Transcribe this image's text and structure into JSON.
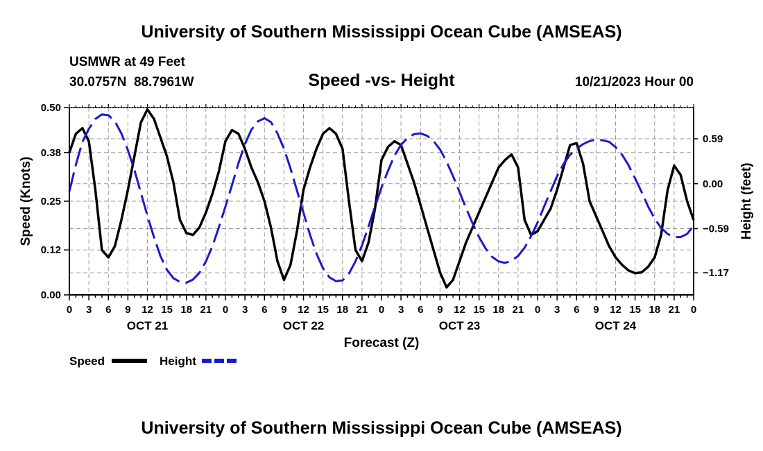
{
  "title": "University of Southern Mississippi Ocean Cube (AMSEAS)",
  "footer_title": "University of Southern Mississippi Ocean Cube (AMSEAS)",
  "station": {
    "name": "USMWR at 49 Feet",
    "coords": "30.0757N  88.7961W"
  },
  "subtitle": "Speed -vs- Height",
  "timestamp": "10/21/2023 Hour 00",
  "colors": {
    "speed": "#000000",
    "height": "#1a1acc",
    "grid": "#999999",
    "axis": "#000000"
  },
  "chart_data": {
    "type": "line",
    "title": "Speed -vs- Height",
    "xlabel": "Forecast (Z)",
    "ylabel": "Speed (Knots)",
    "y2label": "Height (feet)",
    "x_range": [
      0,
      96
    ],
    "ylim": [
      0,
      0.5
    ],
    "y2lim": [
      -1.46,
      1.0
    ],
    "x_ticks": [
      0,
      3,
      6,
      9,
      12,
      15,
      18,
      21,
      24,
      27,
      30,
      33,
      36,
      39,
      42,
      45,
      48,
      51,
      54,
      57,
      60,
      63,
      66,
      69,
      72,
      75,
      78,
      81,
      84,
      87,
      90,
      93,
      96
    ],
    "x_tick_labels": [
      "0",
      "3",
      "6",
      "9",
      "12",
      "15",
      "18",
      "21",
      "0",
      "3",
      "6",
      "9",
      "12",
      "15",
      "18",
      "21",
      "0",
      "3",
      "6",
      "9",
      "12",
      "15",
      "18",
      "21",
      "0",
      "3",
      "6",
      "9",
      "12",
      "15",
      "18",
      "21",
      "0"
    ],
    "day_labels": [
      {
        "x": 12,
        "label": "OCT 21"
      },
      {
        "x": 36,
        "label": "OCT 22"
      },
      {
        "x": 60,
        "label": "OCT 23"
      },
      {
        "x": 84,
        "label": "OCT 24"
      }
    ],
    "y_ticks": [
      0.0,
      0.12,
      0.25,
      0.38,
      0.5
    ],
    "y_tick_labels": [
      "0.00",
      "0.12",
      "0.25",
      "0.38",
      "0.50"
    ],
    "y2_ticks": [
      0.59,
      0.0,
      -0.59,
      -1.17
    ],
    "y2_tick_labels": [
      "0.59",
      "0.00",
      "-0.59",
      "-1.17"
    ],
    "legend": [
      {
        "name": "Speed",
        "style": "solid"
      },
      {
        "name": "Height",
        "style": "dashed"
      }
    ],
    "series": [
      {
        "name": "Speed",
        "axis": "left",
        "x": [
          0,
          1,
          2,
          3,
          4,
          5,
          6,
          7,
          8,
          9,
          10,
          11,
          12,
          13,
          14,
          15,
          16,
          17,
          18,
          19,
          20,
          21,
          22,
          23,
          24,
          25,
          26,
          27,
          28,
          29,
          30,
          31,
          32,
          33,
          34,
          35,
          36,
          37,
          38,
          39,
          40,
          41,
          42,
          43,
          44,
          45,
          46,
          47,
          48,
          49,
          50,
          51,
          52,
          53,
          54,
          55,
          56,
          57,
          58,
          59,
          60,
          61,
          62,
          63,
          64,
          65,
          66,
          67,
          68,
          69,
          70,
          71,
          72,
          73,
          74,
          75,
          76,
          77,
          78,
          79,
          80,
          81,
          82,
          83,
          84,
          85,
          86,
          87,
          88,
          89,
          90,
          91,
          92,
          93,
          94,
          95,
          96
        ],
        "values": [
          0.38,
          0.43,
          0.445,
          0.41,
          0.28,
          0.12,
          0.1,
          0.13,
          0.2,
          0.28,
          0.37,
          0.46,
          0.495,
          0.47,
          0.42,
          0.37,
          0.3,
          0.2,
          0.165,
          0.16,
          0.18,
          0.22,
          0.27,
          0.33,
          0.41,
          0.44,
          0.43,
          0.39,
          0.34,
          0.3,
          0.25,
          0.18,
          0.09,
          0.04,
          0.08,
          0.17,
          0.28,
          0.34,
          0.39,
          0.43,
          0.445,
          0.43,
          0.39,
          0.25,
          0.12,
          0.09,
          0.14,
          0.23,
          0.36,
          0.395,
          0.41,
          0.4,
          0.35,
          0.3,
          0.24,
          0.18,
          0.12,
          0.06,
          0.02,
          0.04,
          0.09,
          0.14,
          0.18,
          0.22,
          0.26,
          0.3,
          0.34,
          0.36,
          0.375,
          0.34,
          0.2,
          0.16,
          0.17,
          0.2,
          0.23,
          0.28,
          0.34,
          0.4,
          0.405,
          0.35,
          0.25,
          0.21,
          0.17,
          0.13,
          0.1,
          0.08,
          0.065,
          0.058,
          0.06,
          0.075,
          0.1,
          0.16,
          0.28,
          0.345,
          0.32,
          0.25,
          0.2
        ]
      },
      {
        "name": "Height",
        "axis": "right",
        "x": [
          0,
          1,
          2,
          3,
          4,
          5,
          6,
          7,
          8,
          9,
          10,
          11,
          12,
          13,
          14,
          15,
          16,
          17,
          18,
          19,
          20,
          21,
          22,
          23,
          24,
          25,
          26,
          27,
          28,
          29,
          30,
          31,
          32,
          33,
          34,
          35,
          36,
          37,
          38,
          39,
          40,
          41,
          42,
          43,
          44,
          45,
          46,
          47,
          48,
          49,
          50,
          51,
          52,
          53,
          54,
          55,
          56,
          57,
          58,
          59,
          60,
          61,
          62,
          63,
          64,
          65,
          66,
          67,
          68,
          69,
          70,
          71,
          72,
          73,
          74,
          75,
          76,
          77,
          78,
          79,
          80,
          81,
          82,
          83,
          84,
          85,
          86,
          87,
          88,
          89,
          90,
          91,
          92,
          93,
          94,
          95,
          96
        ],
        "values": [
          -0.1,
          0.25,
          0.55,
          0.72,
          0.85,
          0.91,
          0.9,
          0.82,
          0.66,
          0.44,
          0.18,
          -0.12,
          -0.42,
          -0.7,
          -0.95,
          -1.13,
          -1.24,
          -1.29,
          -1.3,
          -1.26,
          -1.17,
          -1.02,
          -0.82,
          -0.57,
          -0.3,
          -0.02,
          0.27,
          0.52,
          0.71,
          0.82,
          0.86,
          0.81,
          0.66,
          0.46,
          0.2,
          -0.09,
          -0.38,
          -0.67,
          -0.92,
          -1.11,
          -1.23,
          -1.28,
          -1.27,
          -1.18,
          -1.02,
          -0.81,
          -0.56,
          -0.3,
          -0.05,
          0.17,
          0.37,
          0.51,
          0.6,
          0.65,
          0.66,
          0.63,
          0.56,
          0.45,
          0.29,
          0.1,
          -0.11,
          -0.32,
          -0.52,
          -0.7,
          -0.85,
          -0.96,
          -1.02,
          -1.04,
          -1.01,
          -0.95,
          -0.84,
          -0.69,
          -0.51,
          -0.3,
          -0.1,
          0.1,
          0.26,
          0.38,
          0.46,
          0.52,
          0.56,
          0.58,
          0.57,
          0.55,
          0.48,
          0.38,
          0.24,
          0.07,
          -0.11,
          -0.3,
          -0.46,
          -0.58,
          -0.66,
          -0.7,
          -0.7,
          -0.66,
          -0.55
        ]
      }
    ]
  }
}
